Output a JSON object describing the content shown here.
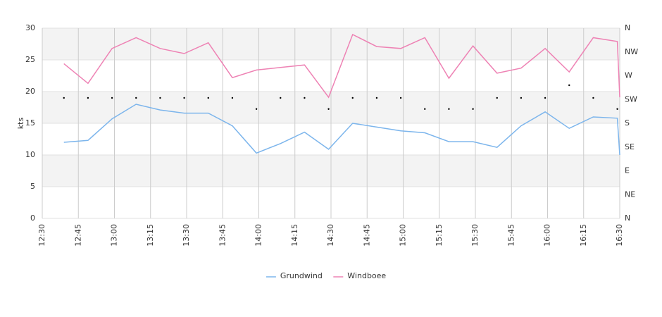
{
  "chart_data": {
    "type": "line",
    "y_label": "kts",
    "x": [
      "12:39",
      "12:49",
      "12:59",
      "13:09",
      "13:19",
      "13:29",
      "13:39",
      "13:49",
      "13:59",
      "14:09",
      "14:19",
      "14:29",
      "14:39",
      "14:49",
      "14:59",
      "15:09",
      "15:19",
      "15:29",
      "15:39",
      "15:49",
      "15:59",
      "16:09",
      "16:19",
      "16:29",
      "16:30"
    ],
    "series": [
      {
        "name": "Grundwind",
        "color": "#7cb5ec",
        "values": [
          12.0,
          12.3,
          15.7,
          18.0,
          17.1,
          16.6,
          16.6,
          14.6,
          10.3,
          11.8,
          13.6,
          10.9,
          15.0,
          14.4,
          13.8,
          13.5,
          12.1,
          12.1,
          11.2,
          14.6,
          16.8,
          14.2,
          16.0,
          15.8,
          10.0
        ]
      },
      {
        "name": "Windboee",
        "color": "#ee82b4",
        "values": [
          24.4,
          21.3,
          26.8,
          28.5,
          26.8,
          26.0,
          27.7,
          22.2,
          23.4,
          23.8,
          24.2,
          19.1,
          29.0,
          27.1,
          26.8,
          28.5,
          22.1,
          27.2,
          22.9,
          23.7,
          26.8,
          23.1,
          28.5,
          27.9,
          19.1
        ]
      }
    ],
    "directions": {
      "axis": "y2",
      "color": "#000000",
      "values": [
        228,
        228,
        228,
        228,
        228,
        228,
        228,
        228,
        207,
        228,
        228,
        207,
        228,
        228,
        228,
        207,
        207,
        207,
        228,
        228,
        228,
        252,
        228,
        207,
        null
      ]
    },
    "xlim": [
      "12:30",
      "16:30"
    ],
    "xticks": [
      "12:30",
      "12:45",
      "13:00",
      "13:15",
      "13:30",
      "13:45",
      "14:00",
      "14:15",
      "14:30",
      "14:45",
      "15:00",
      "15:15",
      "15:30",
      "15:45",
      "16:00",
      "16:15",
      "16:30"
    ],
    "ylim": [
      0,
      30
    ],
    "yticks": [
      0,
      5,
      10,
      15,
      20,
      25,
      30
    ],
    "y2lim": [
      0,
      360
    ],
    "y2ticks": [
      {
        "value": 0,
        "label": "N"
      },
      {
        "value": 45,
        "label": "NE"
      },
      {
        "value": 90,
        "label": "E"
      },
      {
        "value": 135,
        "label": "SE"
      },
      {
        "value": 180,
        "label": "S"
      },
      {
        "value": 225,
        "label": "SW"
      },
      {
        "value": 270,
        "label": "W"
      },
      {
        "value": 315,
        "label": "NW"
      },
      {
        "value": 360,
        "label": "N"
      }
    ],
    "grid": true,
    "legend": "bottom"
  }
}
